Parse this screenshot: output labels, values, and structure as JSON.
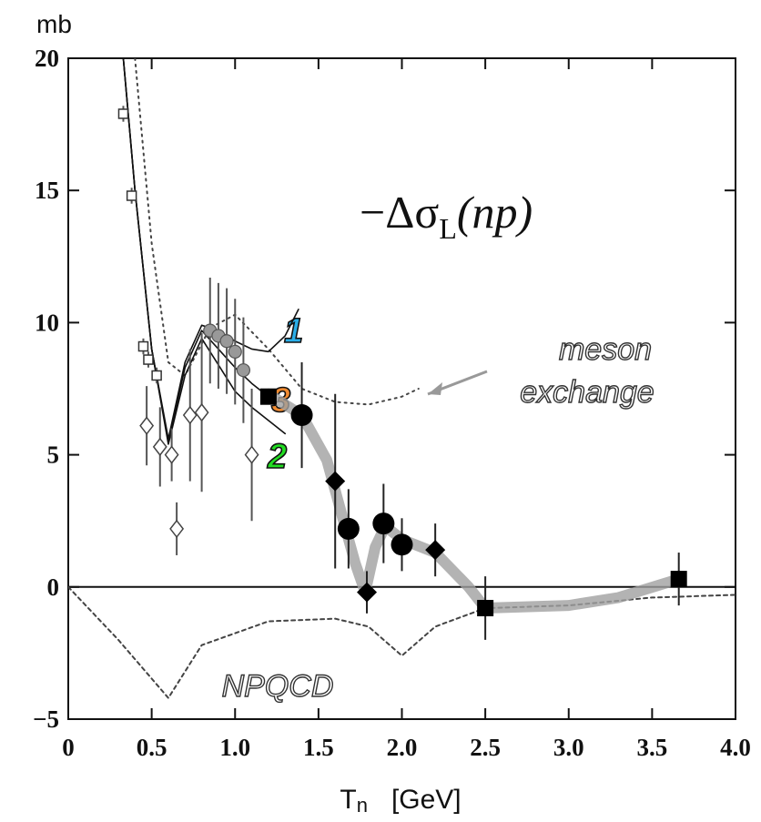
{
  "chart_data": {
    "type": "scatter",
    "ylabel": "mb",
    "xlabel": "T",
    "xlabel_sub": "n",
    "xlabel_unit": "[GeV]",
    "annotation": {
      "main": "−Δσ",
      "sub": "L",
      "tail": "(np)"
    },
    "meson_label": [
      "meson",
      "exchange"
    ],
    "npqcd_label": "NPQCD",
    "curve_labels": [
      {
        "text": "1",
        "color": "#2aaee8"
      },
      {
        "text": "2",
        "color": "#22dd22"
      },
      {
        "text": "3",
        "color": "#f08a30"
      }
    ],
    "xlim": [
      0,
      4
    ],
    "ylim": [
      -5,
      20
    ],
    "xticks": [
      0,
      0.5,
      {
        "value": 1,
        "label": "1.0"
      },
      1.5,
      {
        "value": 2,
        "label": "2.0"
      },
      2.5,
      {
        "value": 3,
        "label": "3.0"
      },
      3.5,
      {
        "value": 4,
        "label": "4.0"
      }
    ],
    "yticks": [
      {
        "value": -5,
        "label": "−5"
      },
      0,
      5,
      10,
      15,
      20
    ],
    "grid": false,
    "curves": [
      {
        "style": "dotted",
        "color": "#444444",
        "x": [
          0.4,
          0.5,
          0.6,
          0.7,
          0.85,
          1.0,
          1.2,
          1.4,
          1.6,
          1.8,
          2.0,
          2.1
        ],
        "values": [
          20,
          13,
          8.5,
          8.0,
          9.8,
          10.3,
          9.0,
          7.5,
          7.0,
          6.9,
          7.2,
          7.5
        ]
      },
      {
        "style": "dashed",
        "color": "#444444",
        "x": [
          0,
          0.3,
          0.6,
          0.8,
          1.2,
          1.6,
          1.8,
          2.0,
          2.2,
          2.5,
          3.0,
          3.5,
          4.0
        ],
        "values": [
          0,
          -2,
          -4.2,
          -2.2,
          -1.3,
          -1.2,
          -1.5,
          -2.6,
          -1.5,
          -0.8,
          -0.7,
          -0.4,
          -0.3
        ]
      },
      {
        "style": "solid",
        "color": "#111111",
        "x": [
          0.33,
          0.4,
          0.5,
          0.6,
          0.7,
          0.8,
          0.9,
          1.0,
          1.1,
          1.2,
          1.3,
          1.38
        ],
        "values": [
          20,
          15,
          9,
          5.6,
          8.5,
          9.9,
          9.7,
          9.3,
          9.0,
          8.9,
          9.5,
          10.5
        ]
      },
      {
        "style": "solid",
        "color": "#111111",
        "x": [
          0.33,
          0.4,
          0.5,
          0.6,
          0.7,
          0.8,
          0.9,
          1.0,
          1.1,
          1.2,
          1.3
        ],
        "values": [
          20,
          15,
          9,
          5.4,
          8.0,
          9.4,
          8.4,
          7.4,
          6.8,
          6.3,
          5.8
        ]
      },
      {
        "style": "solid",
        "color": "#111111",
        "x": [
          0.33,
          0.4,
          0.5,
          0.6,
          0.7,
          0.8,
          0.9,
          1.0,
          1.1,
          1.2,
          1.25
        ],
        "values": [
          20,
          15,
          9,
          5.5,
          8.3,
          9.7,
          9.0,
          8.3,
          7.7,
          7.2,
          7.0
        ]
      },
      {
        "style": "band",
        "color": "#a0a0a0",
        "x": [
          1.2,
          1.4,
          1.55,
          1.65,
          1.72,
          1.78,
          1.84,
          1.9,
          2.0,
          2.2,
          2.4,
          2.5,
          3.0,
          3.3,
          3.66
        ],
        "values": [
          7.3,
          6.5,
          4.8,
          2.5,
          0.9,
          -0.2,
          1.5,
          2.3,
          1.8,
          1.3,
          0,
          -0.8,
          -0.7,
          -0.4,
          0.3
        ]
      }
    ],
    "points": [
      {
        "marker": "open-square",
        "x": [
          0.33,
          0.38,
          0.45,
          0.48,
          0.53
        ],
        "values": [
          17.9,
          14.8,
          9.1,
          8.6,
          8.0
        ],
        "errors": [
          0.3,
          0.3,
          0.3,
          0.3,
          0.3
        ]
      },
      {
        "marker": "open-diamond",
        "x": [
          0.47,
          0.55,
          0.62,
          0.65,
          0.73,
          0.8,
          1.1
        ],
        "values": [
          6.1,
          5.3,
          5.0,
          2.2,
          6.5,
          6.6,
          5.0
        ],
        "errors": [
          1.5,
          1.5,
          1.0,
          1.0,
          2.5,
          3.0,
          2.5
        ]
      },
      {
        "marker": "grey-circle",
        "x": [
          0.85,
          0.9,
          0.95,
          1.0,
          1.05
        ],
        "values": [
          9.7,
          9.5,
          9.3,
          8.9,
          8.2
        ],
        "errors": [
          2.0,
          2.0,
          2.0,
          2.0,
          2.0
        ]
      },
      {
        "marker": "filled-circle",
        "x": [
          1.4,
          1.68,
          1.89,
          2.0
        ],
        "values": [
          6.5,
          2.2,
          2.4,
          1.6
        ],
        "errors": [
          2.0,
          1.5,
          1.5,
          1.0
        ]
      },
      {
        "marker": "filled-diamond",
        "x": [
          1.6,
          1.79,
          2.2
        ],
        "values": [
          4.0,
          -0.2,
          1.4
        ],
        "errors": [
          3.3,
          0.8,
          1.0
        ]
      },
      {
        "marker": "filled-square",
        "x": [
          1.2,
          2.5,
          3.66
        ],
        "values": [
          7.2,
          -0.8,
          0.3
        ],
        "errors": [
          0.3,
          1.2,
          1.0
        ]
      }
    ]
  }
}
